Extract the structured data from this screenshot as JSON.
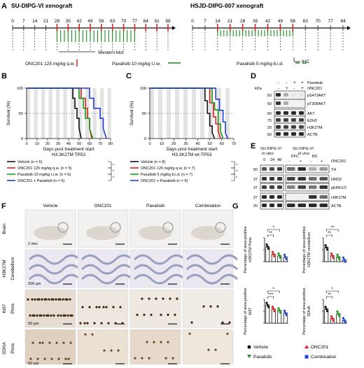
{
  "panels": {
    "A": "A",
    "B": "B",
    "C": "C",
    "D": "D",
    "E": "E",
    "F": "F",
    "G": "G"
  },
  "timelineA": {
    "title": "SU-DIPG-VI xenograft",
    "days": [
      "0",
      "7",
      "14",
      "21",
      "28",
      "35",
      "42",
      "49",
      "56",
      "63",
      "70",
      "77",
      "84",
      "91",
      "98"
    ],
    "western": "Western blot",
    "onc_days": [
      28,
      35,
      42,
      49,
      56,
      63,
      70,
      77,
      84,
      91,
      98
    ],
    "pax_start": 28,
    "pax_end": 77
  },
  "timelineA2": {
    "title": "HSJD-DIPG-007 xenograft",
    "days": [
      "0",
      "7",
      "14",
      "21",
      "28",
      "35",
      "42",
      "49",
      "56",
      "63",
      "70",
      "77",
      "84"
    ],
    "ihc": "IHC",
    "onc_days": [
      14,
      21,
      28,
      35,
      42,
      49,
      56
    ],
    "pax_start": 14,
    "pax_end": 56
  },
  "legendA": {
    "onc": "ONC201 125 mg/kg q.w.",
    "pax10": "Paxalisib 10 mg/kg t.i.w.",
    "pax5": "Paxalisib 5 mg/kg b.i.d."
  },
  "colors": {
    "vehicle": "#111111",
    "onc201": "#e02020",
    "paxalisib": "#1a9a1a",
    "combination": "#1f3fd8",
    "timeline": "#1a8a1a"
  },
  "chartB": {
    "ylabel": "Survival (%)",
    "xlabel": "Days post treatment start",
    "subtitle": "H3.3K27M TP53",
    "yticks": [
      "0",
      "50",
      "100"
    ],
    "xticks": [
      "0",
      "10",
      "20",
      "30",
      "40",
      "50",
      "60",
      "70",
      "80"
    ],
    "legend": [
      "Vehicle (n = 5)",
      "ONC201 125 mg/kg q.w. (n = 5)",
      "Paxalisib 10 mg/kg t.i.w. (n = 5)",
      "ONC201 + Paxalisib (n = 5)"
    ]
  },
  "chartC": {
    "ylabel": "Survival (%)",
    "xlabel": "Days post treatment start",
    "subtitle": "H3.3K27M wt-TP53",
    "yticks": [
      "0",
      "50",
      "100"
    ],
    "xticks": [
      "0",
      "10",
      "20",
      "30",
      "40",
      "50",
      "60",
      "70"
    ],
    "legend": [
      "Vehicle (n = 8)",
      "ONC201 125 mg/kg q.w. (n = 7)",
      "Paxalisib 5 mg/kg b.i.d. (n = 7)",
      "ONC201 + Paxalisib (n = 9)"
    ]
  },
  "chart_data": [
    {
      "type": "line",
      "title": "",
      "xlabel": "Days post treatment start",
      "ylabel": "Survival (%)",
      "xlim": [
        0,
        80
      ],
      "ylim": [
        0,
        100
      ],
      "series": [
        {
          "name": "Vehicle (n = 5)",
          "x": [
            0,
            44,
            44,
            46,
            46,
            48,
            48,
            50,
            50,
            52
          ],
          "values": [
            100,
            100,
            80,
            80,
            60,
            60,
            40,
            40,
            20,
            0
          ]
        },
        {
          "name": "ONC201 125 mg/kg q.w. (n = 5)",
          "x": [
            0,
            52,
            52,
            56,
            56,
            58,
            58,
            60,
            60,
            62
          ],
          "values": [
            100,
            100,
            80,
            80,
            60,
            60,
            40,
            40,
            20,
            0
          ]
        },
        {
          "name": "Paxalisib 10 mg/kg t.i.w. (n = 5)",
          "x": [
            0,
            50,
            50,
            54,
            54,
            56,
            56,
            60,
            60,
            63
          ],
          "values": [
            100,
            100,
            80,
            80,
            60,
            60,
            40,
            40,
            20,
            0
          ]
        },
        {
          "name": "ONC201 + Paxalisib (n = 5)",
          "x": [
            0,
            60,
            60,
            64,
            64,
            70,
            70,
            73,
            73,
            76
          ],
          "values": [
            100,
            100,
            80,
            80,
            60,
            60,
            40,
            40,
            20,
            0
          ]
        }
      ]
    },
    {
      "type": "line",
      "title": "",
      "xlabel": "Days post treatment start",
      "ylabel": "Survival (%)",
      "xlim": [
        0,
        70
      ],
      "ylim": [
        0,
        100
      ],
      "series": [
        {
          "name": "Vehicle (n = 8)",
          "x": [
            0,
            46,
            46,
            48,
            48,
            50,
            50,
            52,
            52,
            54
          ],
          "values": [
            100,
            100,
            75,
            75,
            50,
            50,
            25,
            25,
            12,
            0
          ]
        },
        {
          "name": "ONC201 125 mg/kg q.w. (n = 7)",
          "x": [
            0,
            50,
            50,
            53,
            53,
            55,
            55,
            57,
            57,
            59
          ],
          "values": [
            100,
            100,
            71,
            71,
            43,
            43,
            29,
            29,
            14,
            0
          ]
        },
        {
          "name": "Paxalisib 5 mg/kg b.i.d. (n = 7)",
          "x": [
            0,
            52,
            52,
            54,
            54,
            57,
            57,
            59,
            59,
            61
          ],
          "values": [
            100,
            100,
            71,
            71,
            57,
            57,
            29,
            29,
            14,
            0
          ]
        },
        {
          "name": "ONC201 + Paxalisib (n = 9)",
          "x": [
            0,
            55,
            55,
            58,
            58,
            61,
            61,
            63,
            63,
            65
          ],
          "values": [
            100,
            100,
            78,
            78,
            56,
            56,
            33,
            33,
            11,
            0
          ]
        }
      ]
    },
    {
      "type": "bar",
      "title": "",
      "ylabel": "Percentage of area-positive H3K27M Pons",
      "categories": [
        "Vehicle",
        "ONC201",
        "Paxalisib",
        "Combination"
      ],
      "values": [
        3.8,
        1.9,
        1.5,
        1.2
      ]
    },
    {
      "type": "bar",
      "title": "",
      "ylabel": "Percentage of area-positive H3K27M cerebellum",
      "categories": [
        "Vehicle",
        "ONC201",
        "Paxalisib",
        "Combination"
      ],
      "values": [
        3.6,
        1.5,
        1.2,
        0.5
      ]
    },
    {
      "type": "bar",
      "title": "",
      "ylabel": "Percentage of area-positive Ki67",
      "categories": [
        "Vehicle",
        "ONC201",
        "Paxalisib",
        "Combination"
      ],
      "values": [
        4.6,
        3.6,
        3.2,
        2.6
      ]
    },
    {
      "type": "bar",
      "title": "",
      "ylabel": "Percentage of area-positive SDHA",
      "categories": [
        "Vehicle",
        "ONC201",
        "Paxalisib",
        "Combination"
      ],
      "values": [
        2.4,
        0.8,
        1.6,
        0.5
      ]
    }
  ],
  "blotD": {
    "kda": "kDa",
    "top_labels": [
      "Paxalisib",
      "ONC201"
    ],
    "signs_pax": [
      "-",
      "-",
      "+",
      "+"
    ],
    "signs_onc": [
      "-",
      "+",
      "-",
      "+"
    ],
    "markers": [
      "50",
      "50",
      "50",
      "75",
      "20",
      "50"
    ],
    "rows": [
      "pS473AKT",
      "pT308AKT",
      "AKT",
      "EZH2",
      "H3K27M",
      "ACTB"
    ]
  },
  "blotE": {
    "left_title": "SU-DIPG-VI",
    "left_sub": "In vitro",
    "right_title": "SU-DIPG-VI",
    "right_sub": "In vivo",
    "times": [
      "0",
      "24",
      "48"
    ],
    "regions": [
      "PFC",
      "BS"
    ],
    "onc_label": "ONC201",
    "signs": [
      "-",
      "+",
      "-",
      "+"
    ],
    "markers": [
      "50",
      "37",
      "37",
      "37",
      "20",
      "37"
    ],
    "rows": [
      "TH",
      "DRD2",
      "pERK1/2",
      "H3K27M",
      "ACTB"
    ]
  },
  "histoF": {
    "cols": [
      "Vehicle",
      "ONC201",
      "Paxalisib",
      "Combination"
    ],
    "rows": [
      [
        "Brain",
        ""
      ],
      [
        "H3K27M",
        "Cerebellum"
      ],
      [
        "Ki67",
        "Pons"
      ],
      [
        "SDHA",
        "Pons"
      ]
    ],
    "scales": [
      "2 mm",
      "200 µm",
      "50 µm",
      "50 µm"
    ]
  },
  "legendG": [
    "Vehicle",
    "ONC201",
    "Paxalisib",
    "Combination"
  ],
  "statsG": {
    "p1": "**",
    "p2": "*",
    "p3": "**",
    "p4": "**",
    "p5": "***",
    "p6": "*",
    "p7": "**",
    "p8": "*"
  }
}
